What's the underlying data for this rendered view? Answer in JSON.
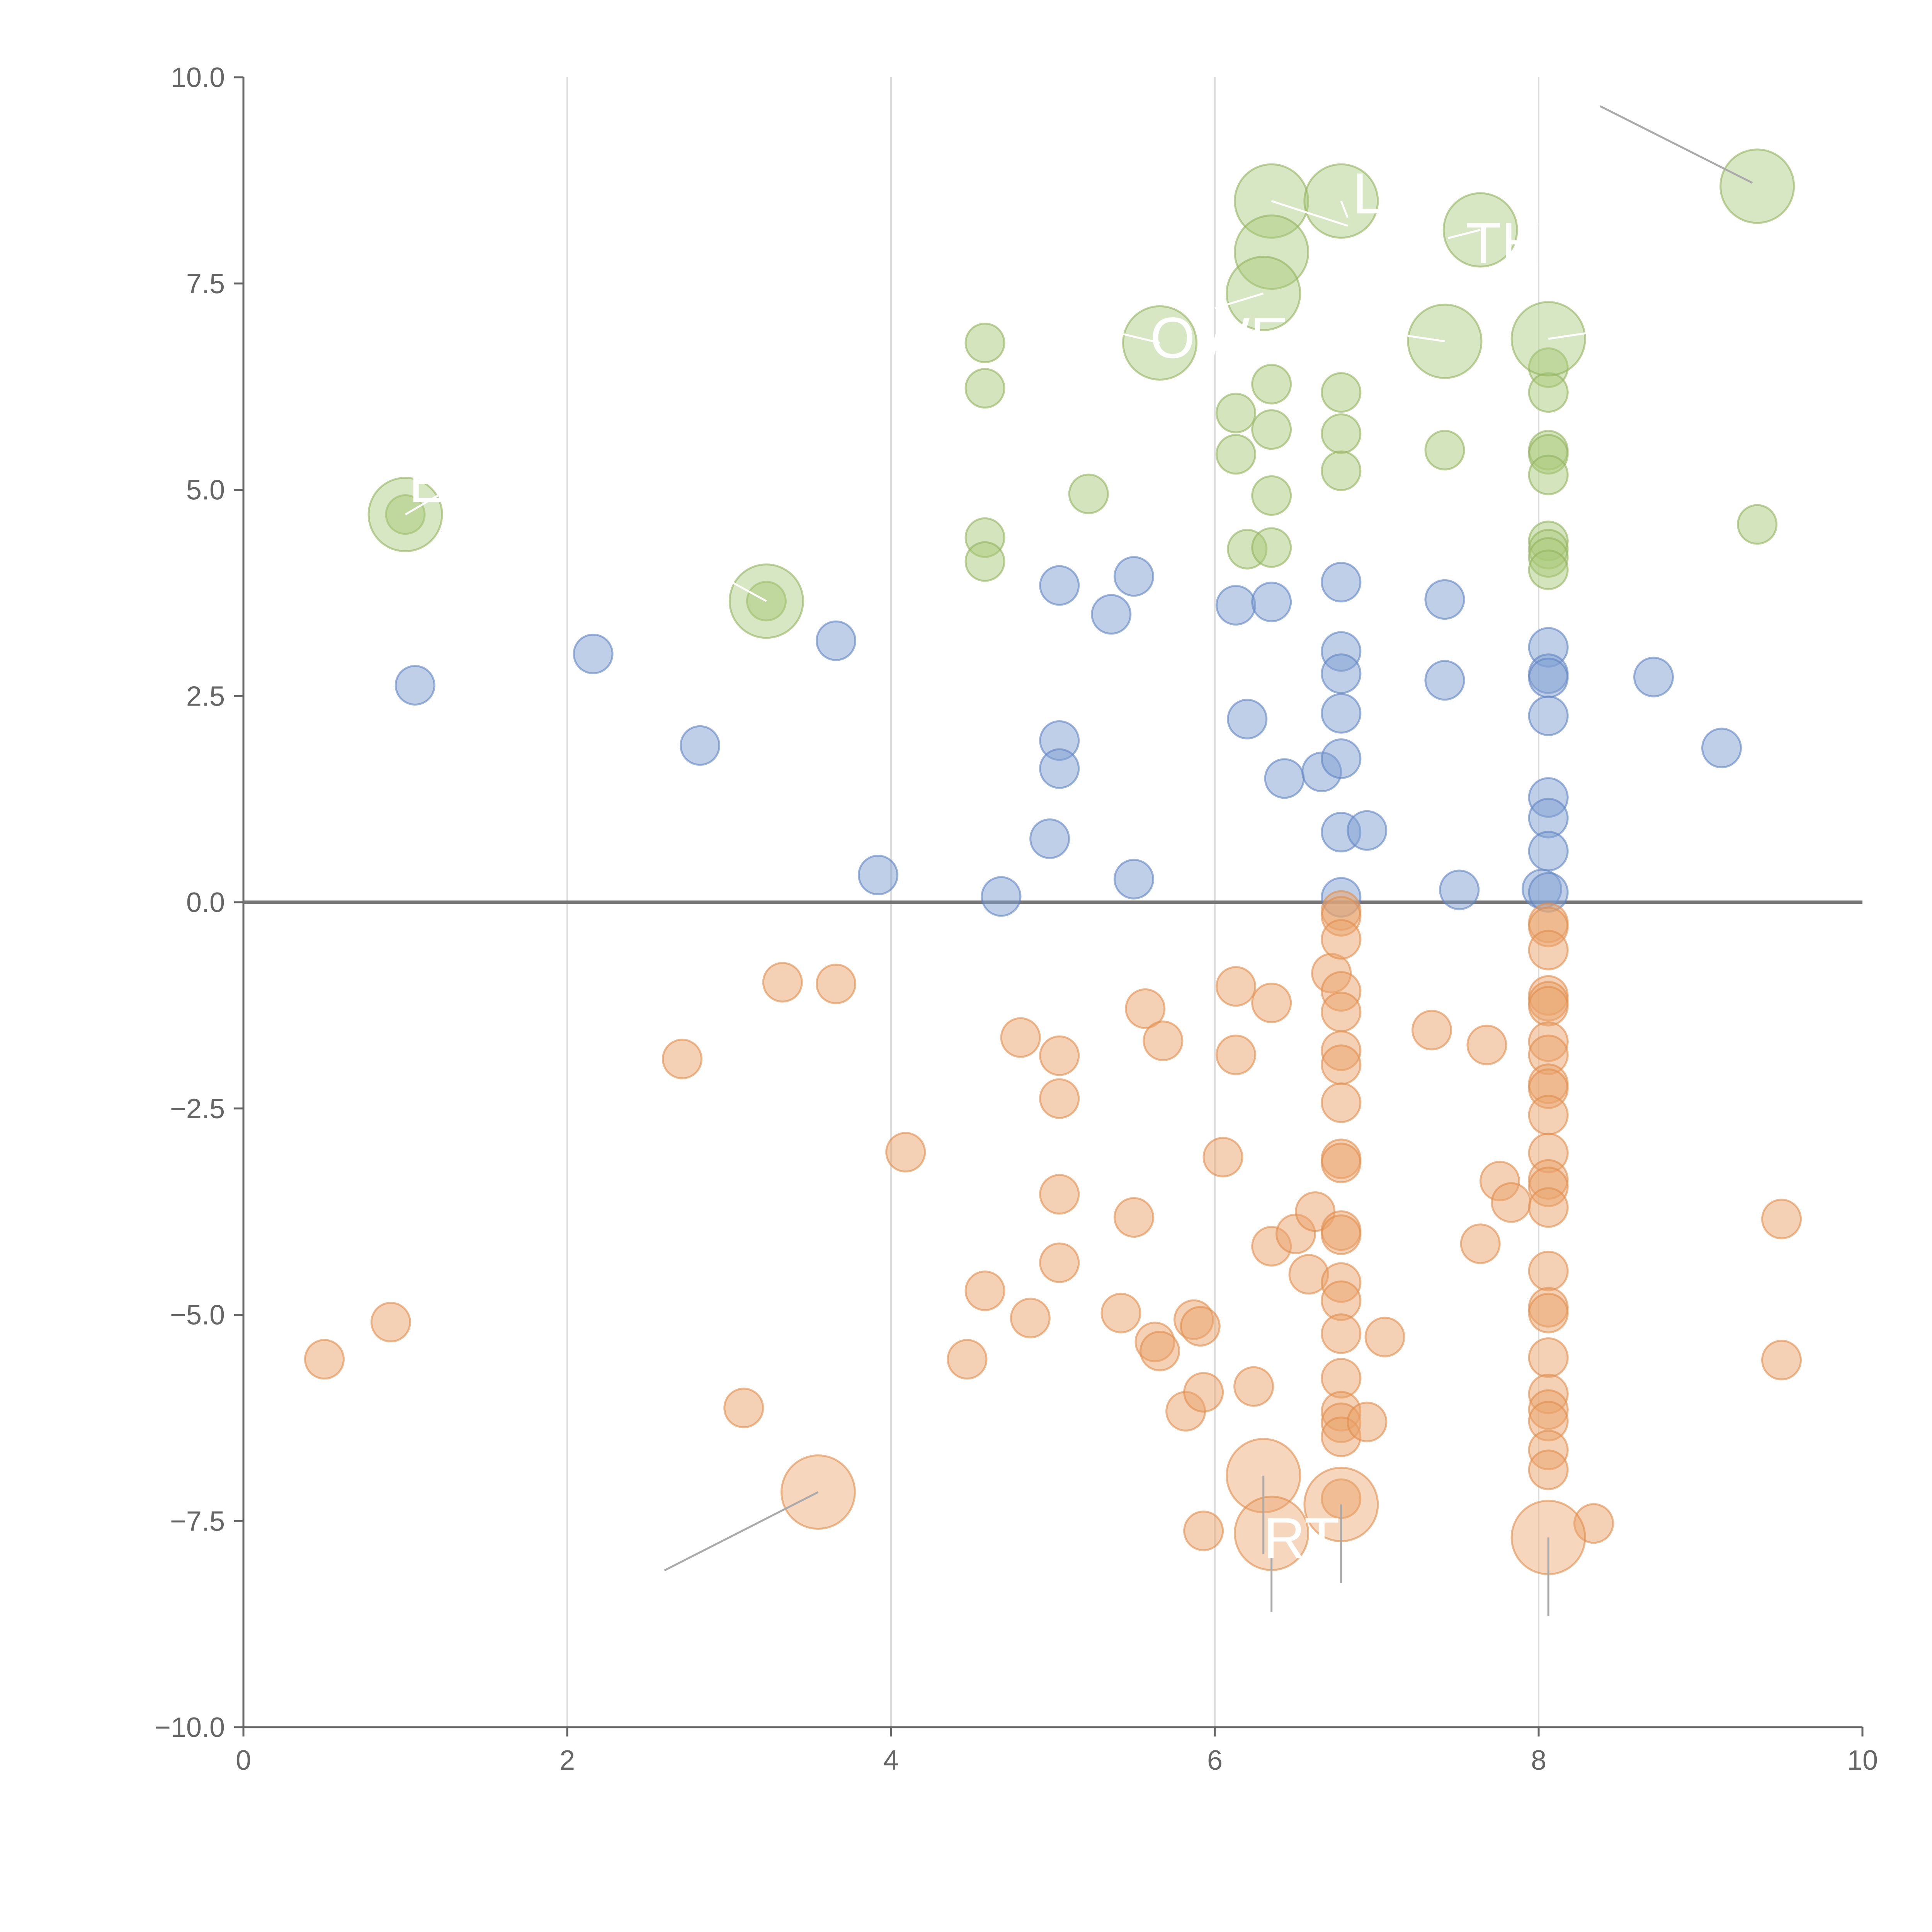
{
  "chart_data": {
    "type": "scatter",
    "title": "",
    "xlabel": "",
    "ylabel": "",
    "xlim": [
      0,
      10
    ],
    "ylim": [
      -10,
      10
    ],
    "x_ticks": [
      {
        "value": 0,
        "label": "0"
      },
      {
        "value": 2,
        "label": "2"
      },
      {
        "value": 4,
        "label": "4"
      },
      {
        "value": 6,
        "label": "6"
      },
      {
        "value": 8,
        "label": "8"
      },
      {
        "value": 10,
        "label": "10"
      }
    ],
    "y_ticks": [
      {
        "value": 10,
        "label": "10.0"
      },
      {
        "value": 7.5,
        "label": "7.5"
      },
      {
        "value": 5,
        "label": "5.0"
      },
      {
        "value": 2.5,
        "label": "2.5"
      },
      {
        "value": 0,
        "label": "0.0"
      },
      {
        "value": -2.5,
        "label": "−2.5"
      },
      {
        "value": -5,
        "label": "−5.0"
      },
      {
        "value": -7.5,
        "label": "−7.5"
      },
      {
        "value": -10,
        "label": "−10.0"
      }
    ],
    "grid_x": true,
    "zero_line": true,
    "colors": {
      "green_fill": "#a9c97a",
      "green_stroke": "#93b35f",
      "blue_fill": "#7fa0d2",
      "blue_stroke": "#6184c2",
      "orange_fill": "#eaa46c",
      "orange_stroke": "#e08d4c"
    },
    "series": [
      {
        "name": "green",
        "points": [
          [
            1.0,
            4.7
          ],
          [
            3.23,
            3.65
          ],
          [
            4.58,
            6.78
          ],
          [
            4.58,
            6.23
          ],
          [
            4.58,
            4.42
          ],
          [
            4.58,
            4.13
          ],
          [
            5.22,
            4.95
          ],
          [
            6.13,
            5.93
          ],
          [
            6.13,
            5.43
          ],
          [
            6.2,
            4.28
          ],
          [
            6.35,
            6.28
          ],
          [
            6.35,
            5.73
          ],
          [
            6.35,
            4.93
          ],
          [
            6.35,
            4.3
          ],
          [
            6.78,
            6.18
          ],
          [
            6.78,
            5.68
          ],
          [
            6.78,
            5.23
          ],
          [
            7.42,
            5.48
          ],
          [
            8.06,
            6.48
          ],
          [
            8.06,
            6.18
          ],
          [
            8.06,
            5.48
          ],
          [
            8.06,
            5.43
          ],
          [
            8.06,
            5.18
          ],
          [
            8.06,
            4.38
          ],
          [
            8.06,
            4.28
          ],
          [
            8.06,
            4.18
          ],
          [
            8.06,
            4.03
          ],
          [
            9.35,
            4.58
          ]
        ],
        "large_points": [
          [
            1.0,
            4.7
          ],
          [
            3.23,
            3.65
          ],
          [
            5.66,
            6.78
          ],
          [
            6.35,
            8.5
          ],
          [
            6.78,
            8.5
          ],
          [
            6.35,
            7.88
          ],
          [
            6.3,
            7.38
          ],
          [
            7.64,
            8.15
          ],
          [
            7.42,
            6.8
          ],
          [
            8.06,
            6.83
          ],
          [
            9.35,
            8.68
          ]
        ]
      },
      {
        "name": "blue",
        "points": [
          [
            1.06,
            2.63
          ],
          [
            2.16,
            3.01
          ],
          [
            2.82,
            1.9
          ],
          [
            3.66,
            3.17
          ],
          [
            3.92,
            0.33
          ],
          [
            4.68,
            0.07
          ],
          [
            4.98,
            0.77
          ],
          [
            5.04,
            3.84
          ],
          [
            5.04,
            1.96
          ],
          [
            5.04,
            1.62
          ],
          [
            5.36,
            3.49
          ],
          [
            5.5,
            3.95
          ],
          [
            5.5,
            0.28
          ],
          [
            6.13,
            3.6
          ],
          [
            6.2,
            2.22
          ],
          [
            6.35,
            3.64
          ],
          [
            6.43,
            1.5
          ],
          [
            6.66,
            1.58
          ],
          [
            6.78,
            3.88
          ],
          [
            6.78,
            3.04
          ],
          [
            6.78,
            2.77
          ],
          [
            6.78,
            2.29
          ],
          [
            6.78,
            1.74
          ],
          [
            6.78,
            0.85
          ],
          [
            6.78,
            0.06
          ],
          [
            6.94,
            0.87
          ],
          [
            7.42,
            3.67
          ],
          [
            7.42,
            2.69
          ],
          [
            7.51,
            0.15
          ],
          [
            8.02,
            0.16
          ],
          [
            8.06,
            3.09
          ],
          [
            8.06,
            2.77
          ],
          [
            8.06,
            2.72
          ],
          [
            8.06,
            2.26
          ],
          [
            8.06,
            1.27
          ],
          [
            8.06,
            1.02
          ],
          [
            8.06,
            0.62
          ],
          [
            8.06,
            0.12
          ],
          [
            8.71,
            2.73
          ],
          [
            9.13,
            1.87
          ]
        ]
      },
      {
        "name": "orange",
        "points": [
          [
            0.5,
            -5.54
          ],
          [
            0.91,
            -5.09
          ],
          [
            2.71,
            -1.9
          ],
          [
            3.09,
            -6.13
          ],
          [
            3.33,
            -0.97
          ],
          [
            3.66,
            -0.99
          ],
          [
            4.09,
            -3.03
          ],
          [
            4.47,
            -5.54
          ],
          [
            4.58,
            -4.71
          ],
          [
            4.8,
            -1.64
          ],
          [
            4.86,
            -5.04
          ],
          [
            5.04,
            -1.86
          ],
          [
            5.04,
            -2.38
          ],
          [
            5.04,
            -3.54
          ],
          [
            5.04,
            -4.37
          ],
          [
            5.42,
            -4.98
          ],
          [
            5.5,
            -3.82
          ],
          [
            5.57,
            -1.29
          ],
          [
            5.63,
            -5.33
          ],
          [
            5.66,
            -5.44
          ],
          [
            5.68,
            -1.68
          ],
          [
            5.82,
            -6.17
          ],
          [
            5.87,
            -5.06
          ],
          [
            5.91,
            -5.14
          ],
          [
            5.93,
            -5.94
          ],
          [
            5.93,
            -7.62
          ],
          [
            6.05,
            -3.09
          ],
          [
            6.13,
            -1.02
          ],
          [
            6.13,
            -1.85
          ],
          [
            6.24,
            -5.87
          ],
          [
            6.35,
            -1.22
          ],
          [
            6.35,
            -4.17
          ],
          [
            6.5,
            -4.02
          ],
          [
            6.58,
            -4.51
          ],
          [
            6.62,
            -3.75
          ],
          [
            6.72,
            -0.86
          ],
          [
            6.78,
            -0.1
          ],
          [
            6.78,
            -0.17
          ],
          [
            6.78,
            -0.45
          ],
          [
            6.78,
            -1.08
          ],
          [
            6.78,
            -1.33
          ],
          [
            6.78,
            -1.8
          ],
          [
            6.78,
            -1.97
          ],
          [
            6.78,
            -2.43
          ],
          [
            6.78,
            -3.11
          ],
          [
            6.78,
            -3.16
          ],
          [
            6.78,
            -3.98
          ],
          [
            6.78,
            -4.03
          ],
          [
            6.78,
            -4.61
          ],
          [
            6.78,
            -4.83
          ],
          [
            6.78,
            -5.23
          ],
          [
            6.78,
            -5.77
          ],
          [
            6.78,
            -6.17
          ],
          [
            6.78,
            -6.31
          ],
          [
            6.78,
            -6.48
          ],
          [
            6.78,
            -7.23
          ],
          [
            6.94,
            -6.3
          ],
          [
            7.05,
            -5.27
          ],
          [
            7.34,
            -1.55
          ],
          [
            7.64,
            -4.14
          ],
          [
            7.68,
            -1.73
          ],
          [
            7.76,
            -3.38
          ],
          [
            7.83,
            -3.64
          ],
          [
            8.06,
            -0.25
          ],
          [
            8.06,
            -0.3
          ],
          [
            8.06,
            -0.58
          ],
          [
            8.06,
            -1.13
          ],
          [
            8.06,
            -1.2
          ],
          [
            8.06,
            -1.26
          ],
          [
            8.06,
            -1.69
          ],
          [
            8.06,
            -1.85
          ],
          [
            8.06,
            -2.2
          ],
          [
            8.06,
            -2.26
          ],
          [
            8.06,
            -2.58
          ],
          [
            8.06,
            -3.04
          ],
          [
            8.06,
            -3.36
          ],
          [
            8.06,
            -3.45
          ],
          [
            8.06,
            -3.7
          ],
          [
            8.06,
            -4.47
          ],
          [
            8.06,
            -4.91
          ],
          [
            8.06,
            -4.98
          ],
          [
            8.06,
            -5.52
          ],
          [
            8.06,
            -5.96
          ],
          [
            8.06,
            -6.15
          ],
          [
            8.06,
            -6.29
          ],
          [
            8.06,
            -6.64
          ],
          [
            8.06,
            -6.88
          ],
          [
            8.34,
            -7.53
          ],
          [
            9.5,
            -3.84
          ],
          [
            9.5,
            -5.55
          ]
        ],
        "large_points": [
          [
            3.55,
            -7.15
          ],
          [
            6.3,
            -6.95
          ],
          [
            6.35,
            -7.65
          ],
          [
            6.78,
            -7.3
          ],
          [
            8.06,
            -7.7
          ]
        ]
      }
    ],
    "labels": {
      "green_a": "OWE",
      "green_b": "TH",
      "green_c": "L",
      "green_d": "E",
      "orange_a": "RT"
    }
  }
}
